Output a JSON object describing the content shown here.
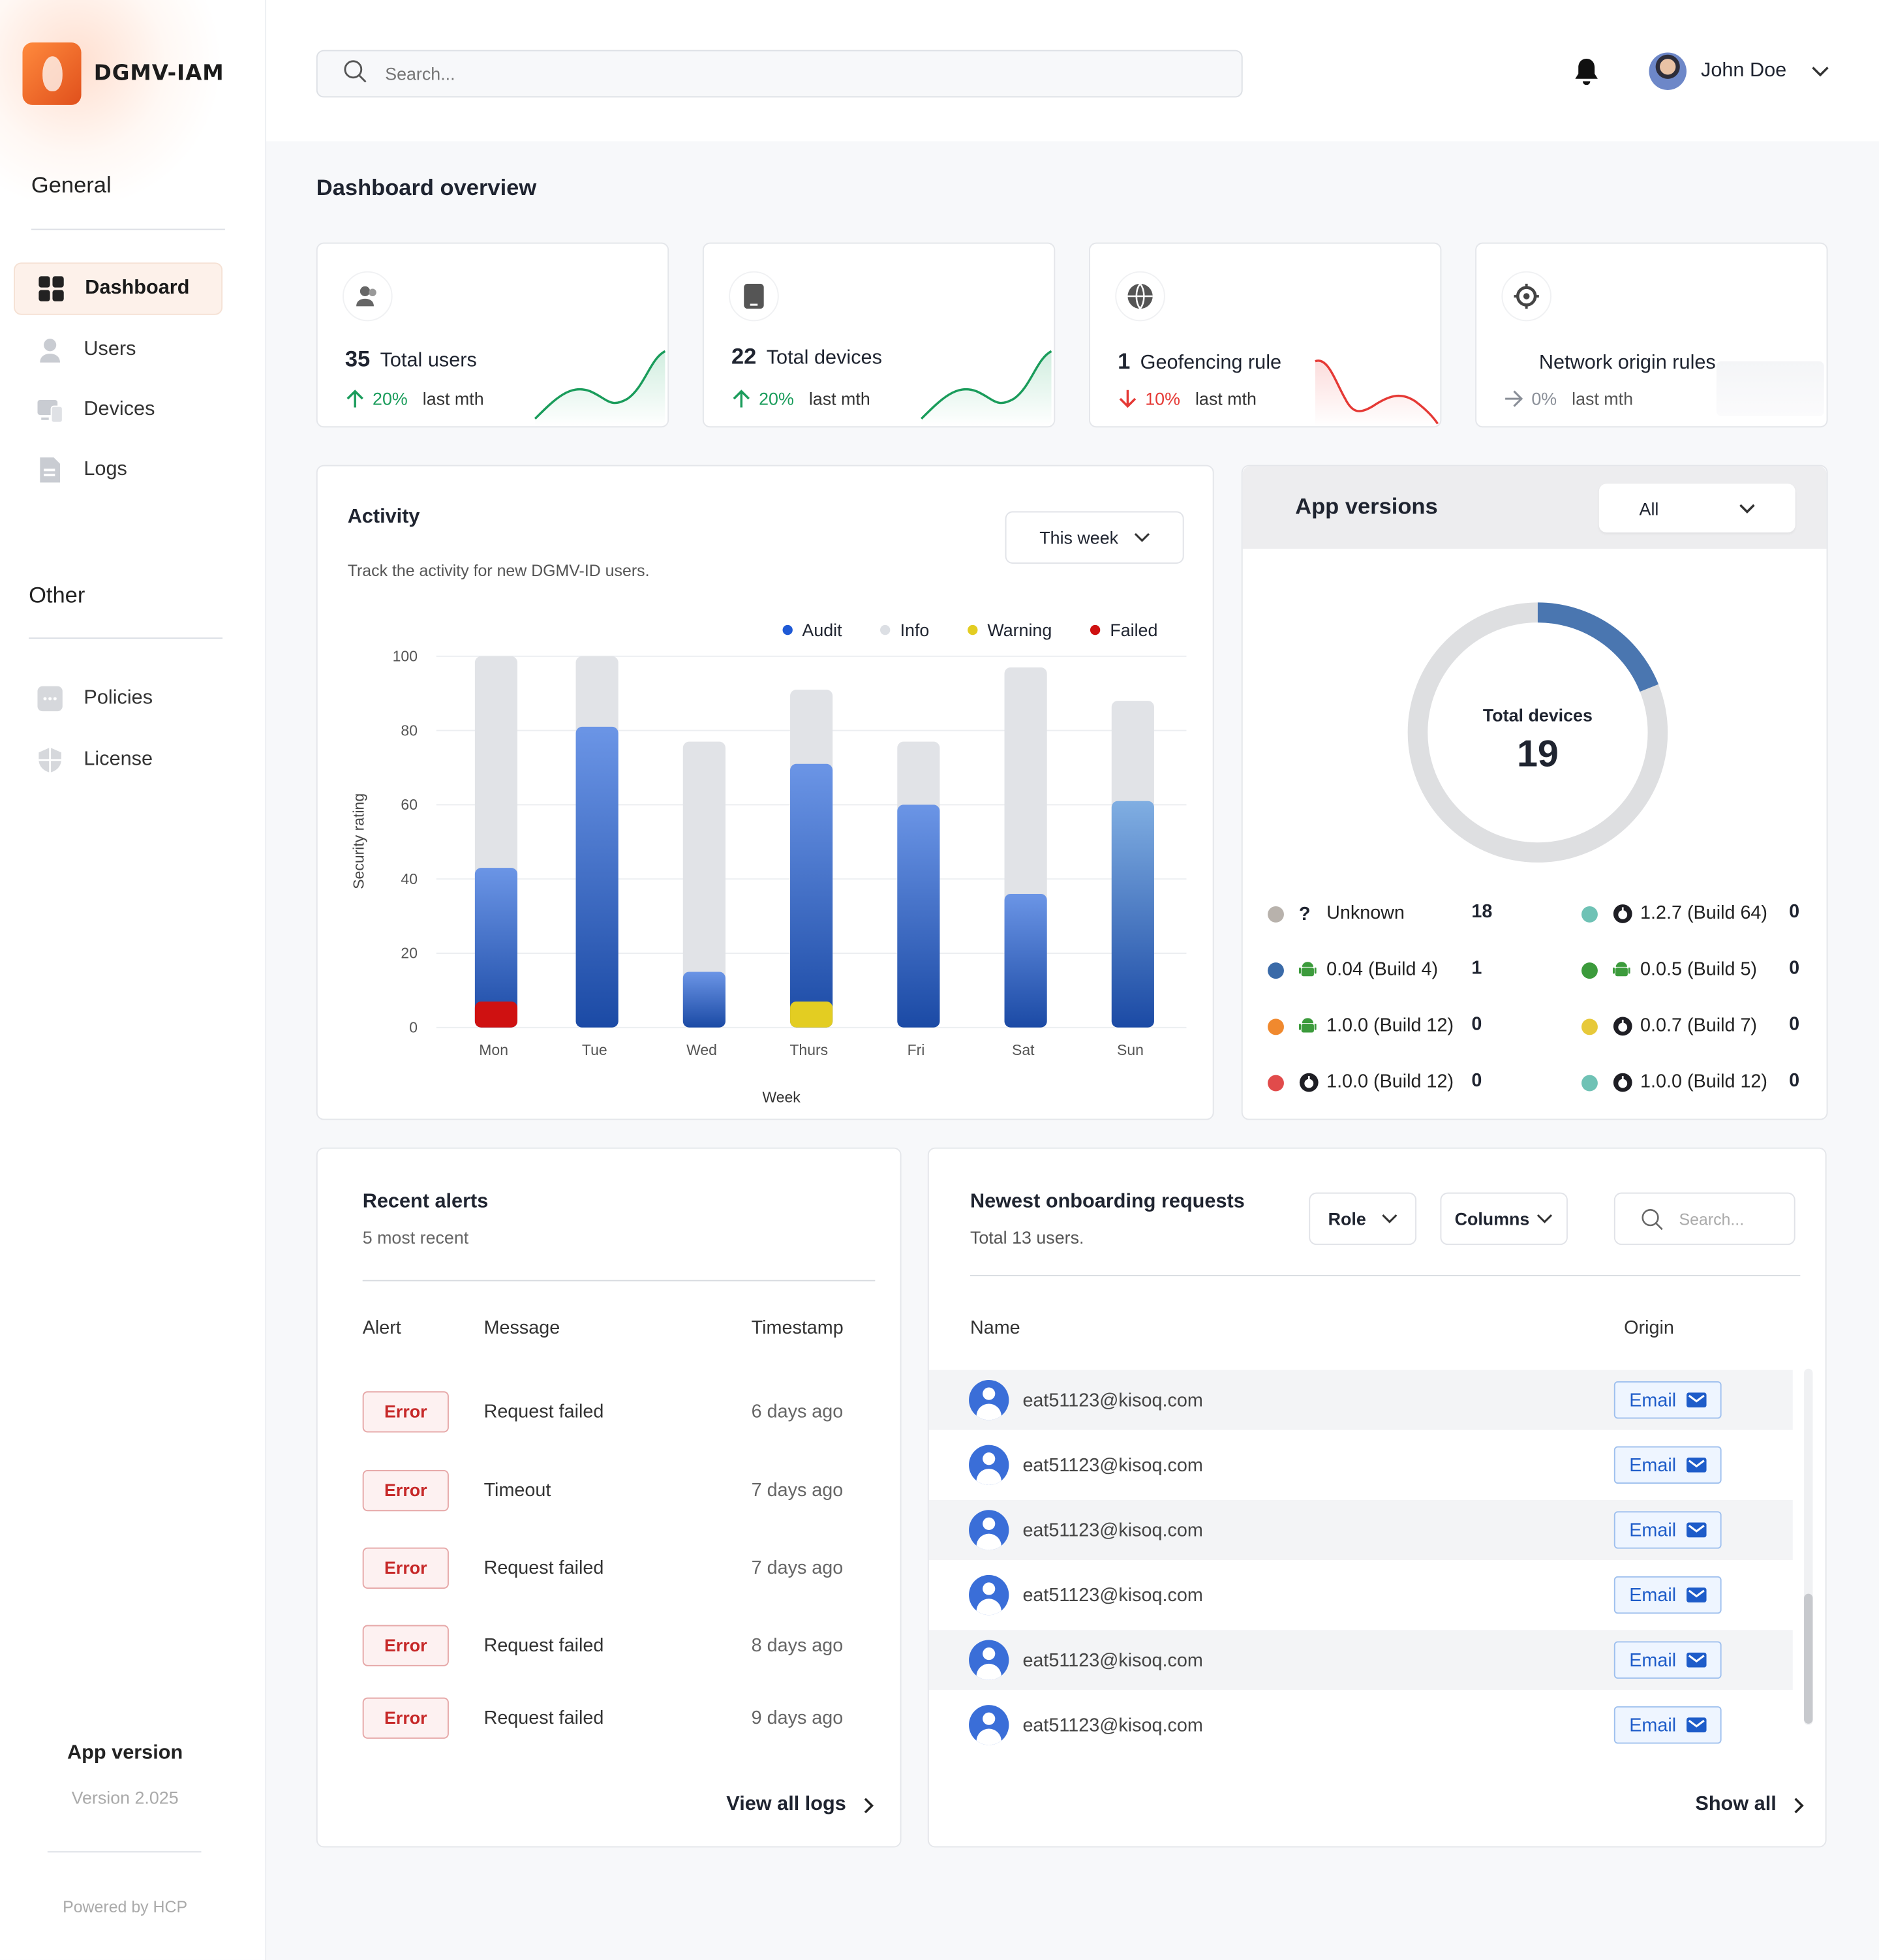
{
  "brand": {
    "name": "DGMV-IAM"
  },
  "sidebar": {
    "general_title": "General",
    "other_title": "Other",
    "items": [
      {
        "label": "Dashboard",
        "icon": "grid-icon",
        "active": true
      },
      {
        "label": "Users",
        "icon": "user-icon"
      },
      {
        "label": "Devices",
        "icon": "devices-icon"
      },
      {
        "label": "Logs",
        "icon": "document-icon"
      }
    ],
    "other_items": [
      {
        "label": "Policies",
        "icon": "policy-icon"
      },
      {
        "label": "License",
        "icon": "shield-icon"
      }
    ],
    "app_version_title": "App version",
    "app_version_value": "Version 2.025",
    "powered_by": "Powered by HCP"
  },
  "header": {
    "search_placeholder": "Search...",
    "user_name": "John Doe"
  },
  "page": {
    "title": "Dashboard overview"
  },
  "stats": [
    {
      "value": "35",
      "label": "Total users",
      "change": "20%",
      "period": "last mth",
      "trend": "up",
      "color": "#1a9c5b"
    },
    {
      "value": "22",
      "label": "Total devices",
      "change": "20%",
      "period": "last mth",
      "trend": "up",
      "color": "#1a9c5b"
    },
    {
      "value": "1",
      "label": "Geofencing rule",
      "change": "10%",
      "period": "last mth",
      "trend": "down",
      "color": "#e53935"
    },
    {
      "value": "",
      "label": "Network origin rules",
      "change": "0%",
      "period": "last mth",
      "trend": "flat",
      "color": "#8a8f98"
    }
  ],
  "activity": {
    "title": "Activity",
    "subtitle": "Track the activity for new DGMV-ID users.",
    "period": "This week",
    "legend": [
      {
        "name": "Audit",
        "color": "#1f5ad6"
      },
      {
        "name": "Info",
        "color": "#dcdfe4"
      },
      {
        "name": "Warning",
        "color": "#e3cd22"
      },
      {
        "name": "Failed",
        "color": "#cf1111"
      }
    ]
  },
  "chart_data": {
    "type": "bar",
    "categories": [
      "Mon",
      "Tue",
      "Wed",
      "Thurs",
      "Fri",
      "Sat",
      "Sun"
    ],
    "series": [
      {
        "name": "Audit",
        "values": [
          43,
          81,
          15,
          71,
          60,
          36,
          61
        ]
      },
      {
        "name": "Info",
        "values": [
          100,
          100,
          77,
          91,
          77,
          97,
          88
        ]
      },
      {
        "name": "Warning",
        "values": [
          0,
          0,
          0,
          7,
          0,
          0,
          0
        ]
      },
      {
        "name": "Failed",
        "values": [
          7,
          0,
          0,
          0,
          0,
          0,
          0
        ]
      }
    ],
    "xlabel": "Week",
    "ylabel": "Security rating",
    "ylim": [
      0,
      100
    ],
    "yticks": [
      0,
      20,
      40,
      60,
      80,
      100
    ],
    "grid": true,
    "legend_position": "top-right"
  },
  "app_versions": {
    "title": "App versions",
    "filter": "All",
    "center_label": "Total devices",
    "total": "19",
    "donut_color": "#4a76b0",
    "legend": [
      {
        "name": "Unknown",
        "value": "18",
        "color": "#b8b2ac",
        "icon": "question-icon"
      },
      {
        "name": "0.04 (Build 4)",
        "value": "1",
        "color": "#3a6aa8",
        "icon": "android-icon"
      },
      {
        "name": "1.0.0 (Build 12)",
        "value": "0",
        "color": "#f0892e",
        "icon": "android-icon"
      },
      {
        "name": "1.0.0 (Build 12)",
        "value": "0",
        "color": "#e14b4b",
        "icon": "apple-icon"
      },
      {
        "name": "1.2.7 (Build 64)",
        "value": "0",
        "color": "#6fc2b5",
        "icon": "apple-icon"
      },
      {
        "name": "0.0.5 (Build 5)",
        "value": "0",
        "color": "#3c9b3c",
        "icon": "android-icon"
      },
      {
        "name": "0.0.7 (Build 7)",
        "value": "0",
        "color": "#e7c93a",
        "icon": "apple-icon"
      },
      {
        "name": "1.0.0 (Build 12)",
        "value": "0",
        "color": "#6fc2b5",
        "icon": "apple-icon"
      }
    ]
  },
  "alerts": {
    "title": "Recent alerts",
    "subtitle": "5 most recent",
    "columns": [
      "Alert",
      "Message",
      "Timestamp"
    ],
    "rows": [
      {
        "alert": "Error",
        "message": "Request failed",
        "time": "6 days ago"
      },
      {
        "alert": "Error",
        "message": "Timeout",
        "time": "7 days ago"
      },
      {
        "alert": "Error",
        "message": "Request failed",
        "time": "7 days ago"
      },
      {
        "alert": "Error",
        "message": "Request failed",
        "time": "8 days ago"
      },
      {
        "alert": "Error",
        "message": "Request failed",
        "time": "9 days ago"
      }
    ],
    "view_all": "View all logs"
  },
  "requests": {
    "title": "Newest onboarding requests",
    "subtitle": "Total 13 users.",
    "role_label": "Role",
    "columns_label": "Columns",
    "search_placeholder": "Search...",
    "col_name": "Name",
    "col_origin": "Origin",
    "rows": [
      {
        "email": "eat51123@kisoq.com",
        "origin": "Email"
      },
      {
        "email": "eat51123@kisoq.com",
        "origin": "Email"
      },
      {
        "email": "eat51123@kisoq.com",
        "origin": "Email"
      },
      {
        "email": "eat51123@kisoq.com",
        "origin": "Email"
      },
      {
        "email": "eat51123@kisoq.com",
        "origin": "Email"
      },
      {
        "email": "eat51123@kisoq.com",
        "origin": "Email"
      }
    ],
    "show_all": "Show all"
  }
}
